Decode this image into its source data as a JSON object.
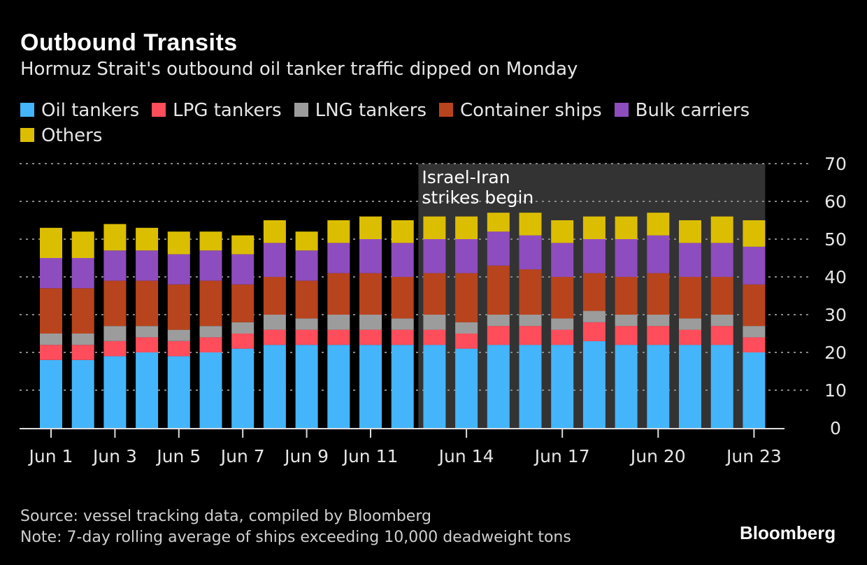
{
  "chart_data": {
    "type": "bar",
    "stacked": true,
    "title": "Outbound Transits",
    "subtitle": "Hormuz Strait's outbound oil tanker traffic dipped on Monday",
    "xlabel": "",
    "ylabel": "",
    "ylim": [
      0,
      70
    ],
    "yticks": [
      0,
      10,
      20,
      30,
      40,
      50,
      60,
      70
    ],
    "y_axis_side": "right",
    "grid": "dotted horizontal",
    "legend_position": "top",
    "categories": [
      "Jun 1",
      "Jun 2",
      "Jun 3",
      "Jun 4",
      "Jun 5",
      "Jun 6",
      "Jun 7",
      "Jun 8",
      "Jun 9",
      "Jun 10",
      "Jun 11",
      "Jun 12",
      "Jun 13",
      "Jun 14",
      "Jun 15",
      "Jun 16",
      "Jun 17",
      "Jun 18",
      "Jun 19",
      "Jun 20",
      "Jun 21",
      "Jun 22",
      "Jun 23"
    ],
    "xtick_labels": [
      {
        "index": 0,
        "label": "Jun 1"
      },
      {
        "index": 2,
        "label": "Jun 3"
      },
      {
        "index": 4,
        "label": "Jun 5"
      },
      {
        "index": 6,
        "label": "Jun 7"
      },
      {
        "index": 8,
        "label": "Jun 9"
      },
      {
        "index": 10,
        "label": "Jun 11"
      },
      {
        "index": 13,
        "label": "Jun 14"
      },
      {
        "index": 16,
        "label": "Jun 17"
      },
      {
        "index": 19,
        "label": "Jun 20"
      },
      {
        "index": 22,
        "label": "Jun 23"
      }
    ],
    "series": [
      {
        "name": "Oil tankers",
        "color": "#44b5fb",
        "values": [
          18,
          18,
          19,
          20,
          19,
          20,
          21,
          22,
          22,
          22,
          22,
          22,
          22,
          21,
          22,
          22,
          22,
          23,
          22,
          22,
          22,
          22,
          20
        ]
      },
      {
        "name": "LPG tankers",
        "color": "#ff4d5b",
        "values": [
          4,
          4,
          4,
          4,
          4,
          4,
          4,
          4,
          4,
          4,
          4,
          4,
          4,
          4,
          5,
          5,
          4,
          5,
          5,
          5,
          4,
          5,
          4
        ]
      },
      {
        "name": "LNG tankers",
        "color": "#9c9c9c",
        "values": [
          3,
          3,
          4,
          3,
          3,
          3,
          3,
          4,
          3,
          4,
          4,
          3,
          4,
          3,
          3,
          3,
          3,
          3,
          3,
          3,
          3,
          3,
          3
        ]
      },
      {
        "name": "Container ships",
        "color": "#b8441d",
        "values": [
          12,
          12,
          12,
          12,
          12,
          12,
          10,
          10,
          10,
          11,
          11,
          11,
          11,
          13,
          13,
          12,
          11,
          10,
          10,
          11,
          11,
          10,
          11
        ]
      },
      {
        "name": "Bulk carriers",
        "color": "#8e4dbe",
        "values": [
          8,
          8,
          8,
          8,
          8,
          8,
          8,
          9,
          8,
          8,
          9,
          9,
          9,
          9,
          9,
          9,
          9,
          9,
          10,
          10,
          9,
          9,
          10
        ]
      },
      {
        "name": "Others",
        "color": "#dcbe00",
        "values": [
          8,
          7,
          7,
          6,
          6,
          5,
          5,
          6,
          5,
          6,
          6,
          6,
          6,
          6,
          5,
          6,
          6,
          6,
          6,
          6,
          6,
          7,
          7
        ]
      }
    ],
    "annotation": {
      "text_lines": [
        "Israel-Iran",
        "strikes begin"
      ],
      "shaded_from_index": 12,
      "shaded_to_index": 22,
      "shade_color": "#333333"
    }
  },
  "footer": {
    "source": "Source: vessel tracking data, compiled by Bloomberg",
    "note": "Note: 7-day rolling average of ships exceeding 10,000 deadweight tons"
  },
  "brand": "Bloomberg"
}
